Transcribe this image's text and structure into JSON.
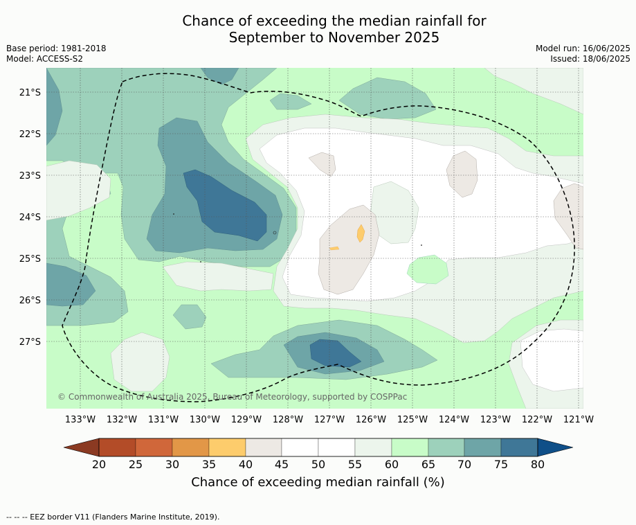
{
  "header": {
    "title_line1": "Chance of exceeding the median rainfall for",
    "title_line2": "September to November 2025",
    "base_period": "Base period: 1981-2018",
    "model": "Model: ACCESS-S2",
    "model_run": "Model run: 16/06/2025",
    "issued": "Issued: 18/06/2025"
  },
  "map": {
    "lat_labels": [
      "21°S",
      "22°S",
      "23°S",
      "24°S",
      "25°S",
      "26°S",
      "27°S"
    ],
    "lon_labels": [
      "133°W",
      "132°W",
      "131°W",
      "130°W",
      "129°W",
      "128°W",
      "127°W",
      "126°W",
      "125°W",
      "124°W",
      "123°W",
      "122°W",
      "121°W"
    ],
    "copyright": "© Commonwealth of Australia 2025, Bureau of Meteorology, supported by COSPPac",
    "eez_border": "dashed black line"
  },
  "colorbar": {
    "ticks": [
      "20",
      "25",
      "30",
      "35",
      "40",
      "45",
      "50",
      "55",
      "60",
      "65",
      "70",
      "75",
      "80"
    ],
    "colors": [
      "#8b3a22",
      "#b34c28",
      "#d0673a",
      "#e29747",
      "#fdcc6c",
      "#ede9e4",
      "#ffffff",
      "#ffffff",
      "#ecf5ec",
      "#c8fcc8",
      "#9dd1bb",
      "#6ea5a7",
      "#3f7797",
      "#0f4f88"
    ],
    "label": "Chance of exceeding median rainfall (%)"
  },
  "footnote": "--  --  -- EEZ border V11 (Flanders Marine Institute, 2019)."
}
